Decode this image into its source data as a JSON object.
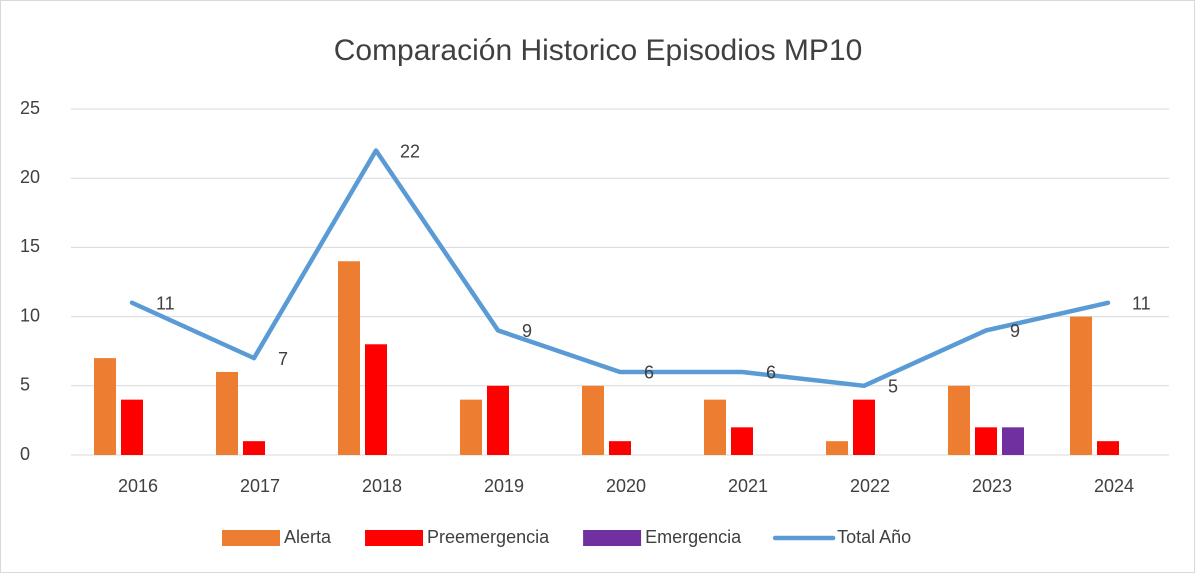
{
  "chart_data": {
    "type": "bar",
    "title": "Comparación Historico Episodios MP10",
    "categories": [
      "2016",
      "2017",
      "2018",
      "2019",
      "2020",
      "2021",
      "2022",
      "2023",
      "2024"
    ],
    "series": [
      {
        "name": "Alerta",
        "color": "#ED7D31",
        "values": [
          7,
          6,
          14,
          4,
          5,
          4,
          1,
          5,
          10
        ]
      },
      {
        "name": "Preemergencia",
        "color": "#FF0000",
        "values": [
          4,
          1,
          8,
          5,
          1,
          2,
          4,
          2,
          1
        ]
      },
      {
        "name": "Emergencia",
        "color": "#7030A0",
        "values": [
          0,
          0,
          0,
          0,
          0,
          0,
          0,
          2,
          0
        ]
      },
      {
        "name": "Total Año",
        "color": "#5B9BD5",
        "type": "line",
        "data_labels": true,
        "values": [
          11,
          7,
          22,
          9,
          6,
          6,
          5,
          9,
          11
        ]
      }
    ],
    "ylim": [
      0,
      25
    ],
    "yticks": [
      0,
      5,
      10,
      15,
      20,
      25
    ],
    "grid": true,
    "legend": "bottom"
  }
}
